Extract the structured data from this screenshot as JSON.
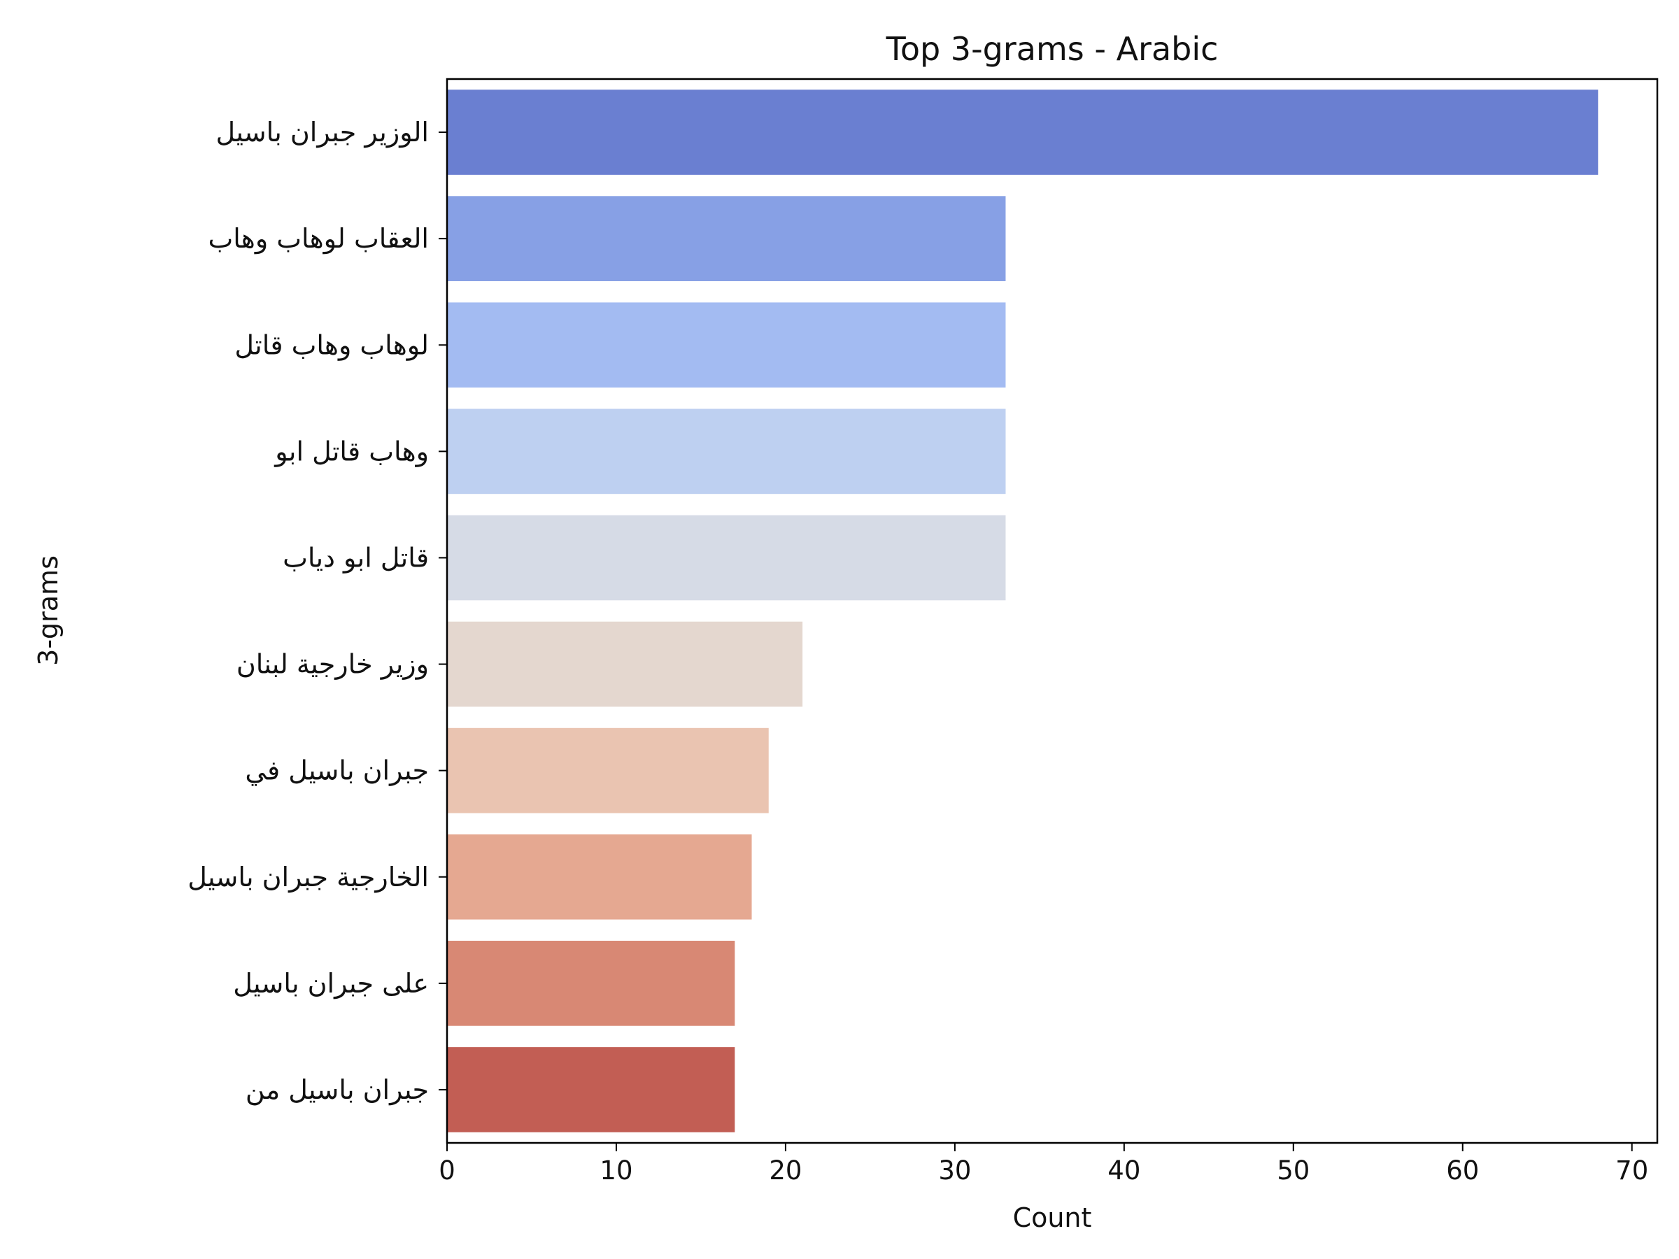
{
  "chart_data": {
    "type": "bar",
    "orientation": "horizontal",
    "title": "Top 3-grams - Arabic",
    "xlabel": "Count",
    "ylabel": "3-grams",
    "xlim": [
      0,
      71.5
    ],
    "xticks": [
      0,
      10,
      20,
      30,
      40,
      50,
      60,
      70
    ],
    "grid": false,
    "categories": [
      "الوزير جبران باسيل",
      "العقاب لوهاب وهاب",
      "لوهاب وهاب قاتل",
      "وهاب قاتل ابو",
      "قاتل ابو دياب",
      "وزير خارجية لبنان",
      "جبران باسيل في",
      "الخارجية جبران باسيل",
      "على جبران باسيل",
      "جبران باسيل من"
    ],
    "values": [
      68,
      33,
      33,
      33,
      33,
      21,
      19,
      18,
      17,
      17
    ],
    "colors": [
      "#6a7fd1",
      "#87a0e5",
      "#a3bbf2",
      "#bed0f1",
      "#d6dbe6",
      "#e4d7cf",
      "#eac4b1",
      "#e5a891",
      "#d88874",
      "#c25e54"
    ]
  }
}
